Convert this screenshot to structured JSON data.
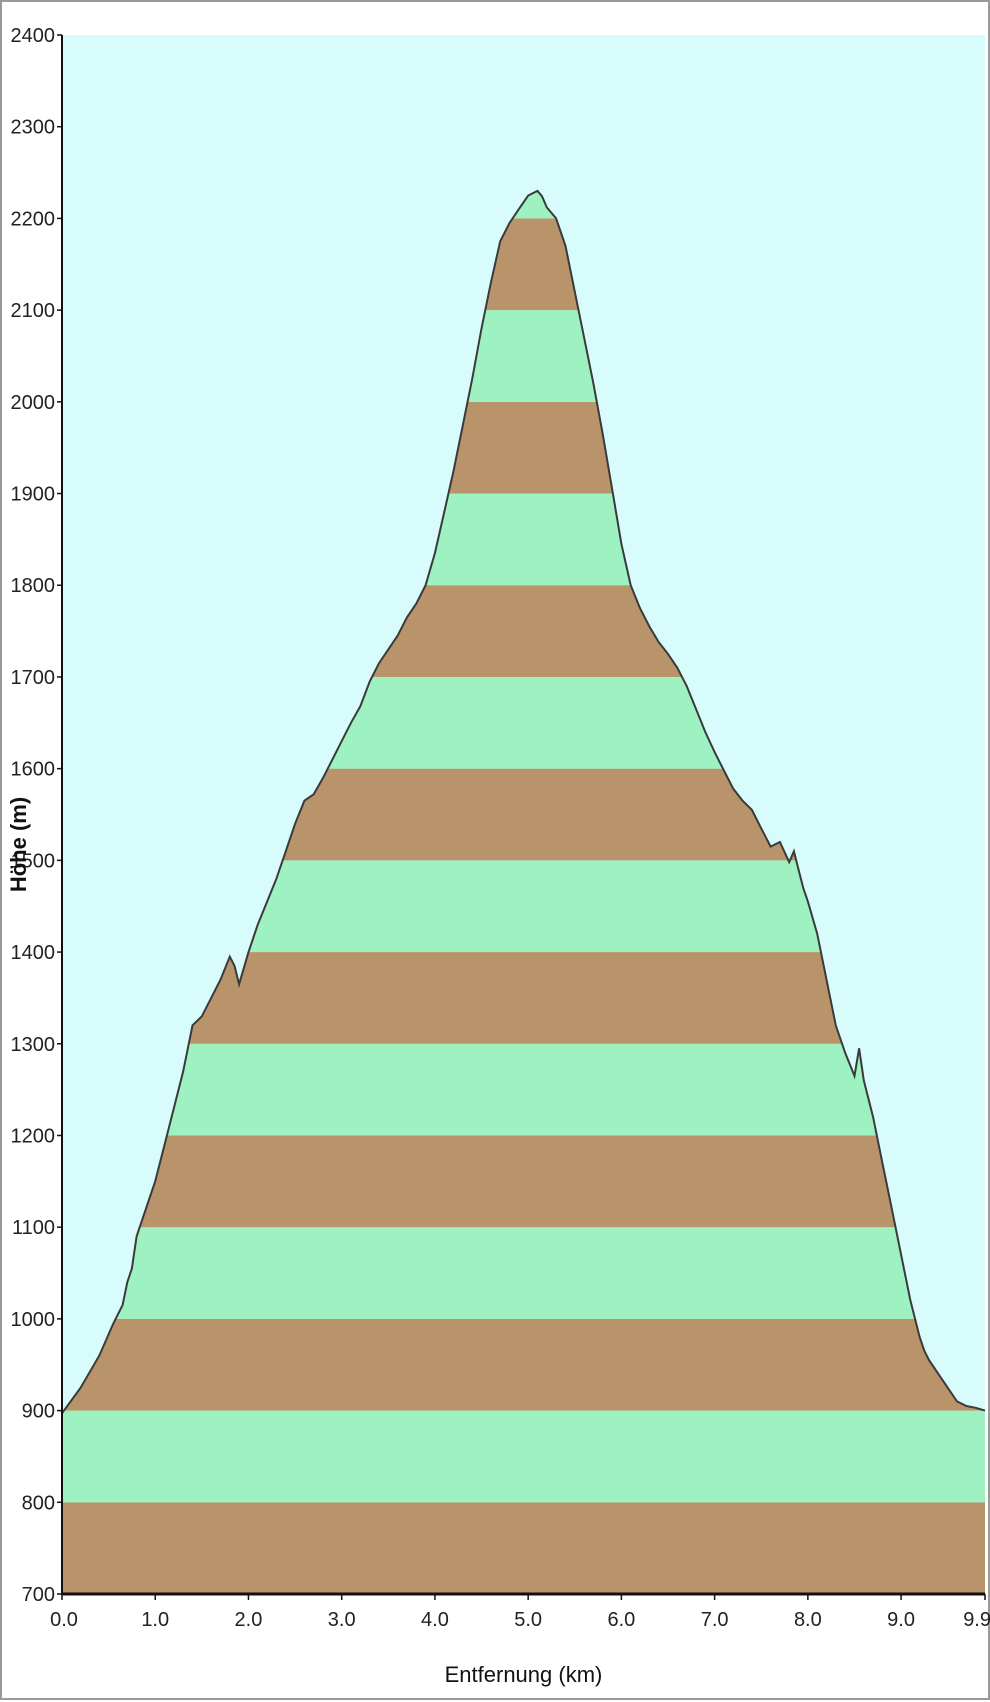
{
  "chart_data": {
    "type": "area",
    "title": "",
    "xlabel": "Entfernung  (km)",
    "ylabel": "Höhe (m)",
    "xlim": [
      0.0,
      9.9
    ],
    "ylim": [
      700,
      2400
    ],
    "x_ticks": [
      "0.0",
      "1.0",
      "2.0",
      "3.0",
      "4.0",
      "5.0",
      "6.0",
      "7.0",
      "8.0",
      "9.0",
      "9.9"
    ],
    "y_ticks": [
      "700",
      "800",
      "900",
      "1000",
      "1100",
      "1200",
      "1300",
      "1400",
      "1500",
      "1600",
      "1700",
      "1800",
      "1900",
      "2000",
      "2100",
      "2200",
      "2300",
      "2400"
    ],
    "grid": false,
    "legend": "none",
    "colors": {
      "sky": "#d8fcfc",
      "band_brown": "#b9946a",
      "band_green": "#9ef2c2",
      "profile_line": "#3a3a3a"
    },
    "x": [
      0.0,
      0.2,
      0.4,
      0.55,
      0.65,
      0.7,
      0.75,
      0.8,
      0.9,
      1.0,
      1.1,
      1.2,
      1.3,
      1.4,
      1.5,
      1.6,
      1.7,
      1.8,
      1.85,
      1.9,
      2.0,
      2.1,
      2.2,
      2.3,
      2.4,
      2.5,
      2.6,
      2.7,
      2.8,
      2.9,
      3.0,
      3.1,
      3.2,
      3.3,
      3.4,
      3.5,
      3.6,
      3.7,
      3.8,
      3.9,
      4.0,
      4.1,
      4.2,
      4.3,
      4.4,
      4.5,
      4.6,
      4.7,
      4.8,
      4.9,
      5.0,
      5.1,
      5.15,
      5.2,
      5.3,
      5.4,
      5.5,
      5.6,
      5.7,
      5.8,
      5.9,
      6.0,
      6.1,
      6.2,
      6.3,
      6.4,
      6.5,
      6.6,
      6.7,
      6.8,
      6.9,
      7.0,
      7.1,
      7.2,
      7.3,
      7.4,
      7.5,
      7.6,
      7.7,
      7.8,
      7.85,
      7.9,
      7.95,
      8.0,
      8.1,
      8.2,
      8.3,
      8.4,
      8.5,
      8.55,
      8.6,
      8.7,
      8.8,
      8.9,
      9.0,
      9.1,
      9.2,
      9.25,
      9.3,
      9.4,
      9.5,
      9.6,
      9.7,
      9.8,
      9.9
    ],
    "y": [
      897,
      925,
      960,
      995,
      1015,
      1040,
      1055,
      1090,
      1120,
      1150,
      1190,
      1230,
      1270,
      1320,
      1330,
      1350,
      1370,
      1395,
      1385,
      1365,
      1400,
      1430,
      1455,
      1480,
      1510,
      1540,
      1565,
      1572,
      1590,
      1610,
      1630,
      1650,
      1668,
      1695,
      1715,
      1730,
      1745,
      1765,
      1780,
      1800,
      1835,
      1880,
      1925,
      1975,
      2025,
      2080,
      2130,
      2175,
      2195,
      2210,
      2225,
      2230,
      2224,
      2212,
      2200,
      2170,
      2120,
      2070,
      2020,
      1965,
      1905,
      1845,
      1800,
      1775,
      1755,
      1738,
      1725,
      1710,
      1690,
      1665,
      1640,
      1618,
      1598,
      1578,
      1565,
      1555,
      1535,
      1515,
      1520,
      1498,
      1510,
      1490,
      1470,
      1455,
      1420,
      1370,
      1320,
      1290,
      1265,
      1295,
      1260,
      1220,
      1170,
      1120,
      1070,
      1020,
      980,
      965,
      955,
      940,
      925,
      910,
      905,
      903,
      900
    ]
  }
}
